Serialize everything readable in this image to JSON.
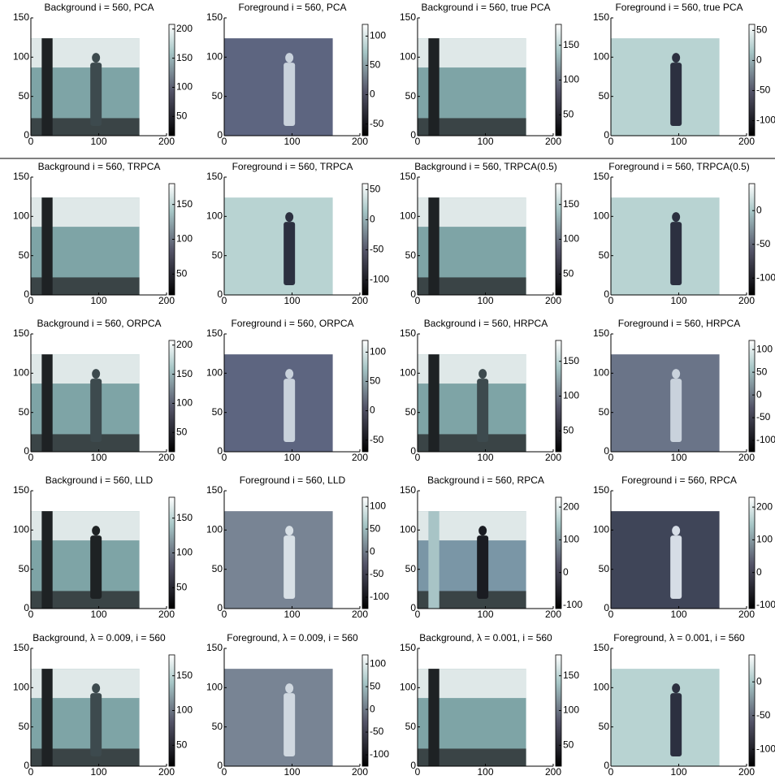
{
  "xlim": [
    0,
    200
  ],
  "ylim": [
    0,
    150
  ],
  "xticks": [
    0,
    100,
    200
  ],
  "yticks": [
    0,
    50,
    100,
    150
  ],
  "panels": [
    {
      "title": "Background  i = 560,  PCA",
      "cbar_lim": [
        17,
        208
      ],
      "cbar_ticks": [
        50,
        100,
        150,
        200
      ],
      "image_color": "#7ea4a6",
      "figure_color": "#3d4a4e",
      "trunk_color": "#1e2224"
    },
    {
      "title": "Foreground i = 560,  PCA",
      "cbar_lim": [
        -70,
        120
      ],
      "cbar_ticks": [
        -50,
        0,
        50,
        100
      ],
      "image_color": "#5d6580",
      "figure_color": "#c9d2dc",
      "trunk_color": null
    },
    {
      "title": "Background  i = 560,  true PCA",
      "cbar_lim": [
        20,
        180
      ],
      "cbar_ticks": [
        50,
        100,
        150
      ],
      "image_color": "#7ea4a6",
      "figure_color": null,
      "trunk_color": "#1e2224"
    },
    {
      "title": "Foreground i = 560,  true PCA",
      "cbar_lim": [
        -125,
        60
      ],
      "cbar_ticks": [
        -100,
        -50,
        0,
        50
      ],
      "image_color": "#b8d3d2",
      "figure_color": "#2c3040",
      "trunk_color": null
    },
    {
      "title": "Background  i = 560,  TRPCA",
      "cbar_lim": [
        20,
        180
      ],
      "cbar_ticks": [
        50,
        100,
        150
      ],
      "image_color": "#7ea4a6",
      "figure_color": null,
      "trunk_color": "#1e2224"
    },
    {
      "title": "Foreground i = 560,  TRPCA",
      "cbar_lim": [
        -125,
        60
      ],
      "cbar_ticks": [
        -100,
        -50,
        0,
        50
      ],
      "image_color": "#b8d3d2",
      "figure_color": "#2c3040",
      "trunk_color": null
    },
    {
      "title": "Background  i = 560,  TRPCA(0.5)",
      "cbar_lim": [
        20,
        180
      ],
      "cbar_ticks": [
        50,
        100,
        150
      ],
      "image_color": "#7ea4a6",
      "figure_color": null,
      "trunk_color": "#1e2224"
    },
    {
      "title": "Foreground i = 560,  TRPCA(0.5)",
      "cbar_lim": [
        -125,
        40
      ],
      "cbar_ticks": [
        -100,
        -50,
        0
      ],
      "image_color": "#b8d3d2",
      "figure_color": "#2c3040",
      "trunk_color": null
    },
    {
      "title": "Background  i = 560,  ORPCA",
      "cbar_lim": [
        17,
        208
      ],
      "cbar_ticks": [
        50,
        100,
        150,
        200
      ],
      "image_color": "#7ea4a6",
      "figure_color": "#3d4a4e",
      "trunk_color": "#1e2224"
    },
    {
      "title": "Foreground i = 560,  ORPCA",
      "cbar_lim": [
        -70,
        120
      ],
      "cbar_ticks": [
        -50,
        0,
        50,
        100
      ],
      "image_color": "#5d6580",
      "figure_color": "#c9d2dc",
      "trunk_color": null
    },
    {
      "title": "Background  i = 560,  HRPCA",
      "cbar_lim": [
        20,
        180
      ],
      "cbar_ticks": [
        50,
        100,
        150
      ],
      "image_color": "#7ea4a6",
      "figure_color": "#3d4a4e",
      "trunk_color": "#1e2224"
    },
    {
      "title": "Foreground i = 560,  HRPCA",
      "cbar_lim": [
        -125,
        120
      ],
      "cbar_ticks": [
        -100,
        -50,
        0,
        50,
        100
      ],
      "image_color": "#6a7488",
      "figure_color": "#c9d2dc",
      "trunk_color": null
    },
    {
      "title": "Background  i = 560,  LLD",
      "cbar_lim": [
        20,
        180
      ],
      "cbar_ticks": [
        50,
        100,
        150
      ],
      "image_color": "#7ea4a6",
      "figure_color": "#1e2224",
      "trunk_color": "#1e2224"
    },
    {
      "title": "Foreground i = 560,  LLD",
      "cbar_lim": [
        -125,
        120
      ],
      "cbar_ticks": [
        -100,
        -50,
        0,
        50,
        100
      ],
      "image_color": "#788494",
      "figure_color": "#d8e0e6",
      "trunk_color": null
    },
    {
      "title": "Background  i = 560,  RPCA",
      "cbar_lim": [
        -110,
        230
      ],
      "cbar_ticks": [
        -100,
        0,
        100,
        200
      ],
      "image_color": "#7a96a6",
      "figure_color": "#1a1c22",
      "trunk_color": "#a8c4c6"
    },
    {
      "title": "Foreground i = 560,  RPCA",
      "cbar_lim": [
        -110,
        230
      ],
      "cbar_ticks": [
        -100,
        0,
        100,
        200
      ],
      "image_color": "#3f4558",
      "figure_color": "#d6dde6",
      "trunk_color": null
    },
    {
      "title": "Background, λ = 0.009, i = 560",
      "cbar_lim": [
        20,
        180
      ],
      "cbar_ticks": [
        50,
        100,
        150
      ],
      "image_color": "#7ea4a6",
      "figure_color": "#3d4a4e",
      "trunk_color": "#1e2224"
    },
    {
      "title": "Foreground, λ = 0.009, i = 560",
      "cbar_lim": [
        -125,
        120
      ],
      "cbar_ticks": [
        -100,
        -50,
        0,
        50,
        100
      ],
      "image_color": "#788494",
      "figure_color": "#d0d8e0",
      "trunk_color": null
    },
    {
      "title": "Background, λ = 0.001, i = 560",
      "cbar_lim": [
        20,
        180
      ],
      "cbar_ticks": [
        50,
        100,
        150
      ],
      "image_color": "#7ea4a6",
      "figure_color": null,
      "trunk_color": "#1e2224"
    },
    {
      "title": "Foreground, λ = 0.001, i = 560",
      "cbar_lim": [
        -125,
        40
      ],
      "cbar_ticks": [
        -100,
        -50,
        0
      ],
      "image_color": "#b8d3d2",
      "figure_color": "#2c3040",
      "trunk_color": null
    }
  ]
}
